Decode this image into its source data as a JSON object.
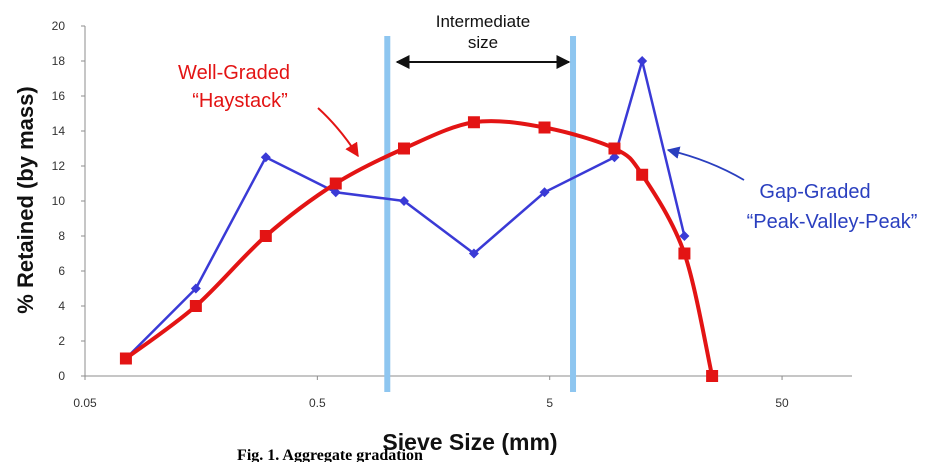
{
  "chart_data": {
    "type": "line",
    "xlabel": "Sieve Size (mm)",
    "ylabel": "% Retained (by mass)",
    "x_scale": "log",
    "xlim": [
      0.05,
      100
    ],
    "ylim": [
      0,
      20
    ],
    "x_ticks": [
      0.05,
      0.5,
      5,
      50
    ],
    "x_tick_labels": [
      "0.05",
      "0.5",
      "5",
      "50"
    ],
    "y_ticks": [
      0,
      2,
      4,
      6,
      8,
      10,
      12,
      14,
      16,
      18,
      20
    ],
    "y_tick_labels": [
      "0",
      "2",
      "4",
      "6",
      "8",
      "10",
      "12",
      "14",
      "16",
      "18",
      "20"
    ],
    "grid": false,
    "series": [
      {
        "color": "#3a3ad6",
        "marker": "diamond",
        "x": [
          0.075,
          0.15,
          0.3,
          0.6,
          1.18,
          2.36,
          4.75,
          9.5,
          12.5,
          19
        ],
        "y": [
          1,
          5,
          12.5,
          10.5,
          10,
          7,
          10.5,
          12.5,
          18,
          8
        ]
      },
      {
        "color": "#e31414",
        "marker": "square",
        "x": [
          0.075,
          0.15,
          0.3,
          0.6,
          1.18,
          2.36,
          4.75,
          9.5,
          12.5,
          19,
          25
        ],
        "y": [
          1,
          4,
          8,
          11,
          13,
          14.5,
          14.2,
          13,
          11.5,
          7,
          0
        ]
      }
    ],
    "vertical_bands": [
      {
        "x": 1.0,
        "color": "#8ec6f0"
      },
      {
        "x": 6.3,
        "color": "#8ec6f0"
      }
    ],
    "annotations": {
      "intermediate": {
        "line1": "Intermediate",
        "line2": "size",
        "x_from": 1.0,
        "x_to": 6.3,
        "y": 18
      },
      "well_graded": {
        "line1": "Well-Graded",
        "line2": "“Haystack”",
        "color": "#e31414"
      },
      "gap_graded": {
        "line1": "Gap-Graded",
        "line2": "“Peak-Valley-Peak”",
        "color": "#2a3fbf"
      }
    }
  },
  "caption": "Fig. 1.  Aggregate gradation"
}
